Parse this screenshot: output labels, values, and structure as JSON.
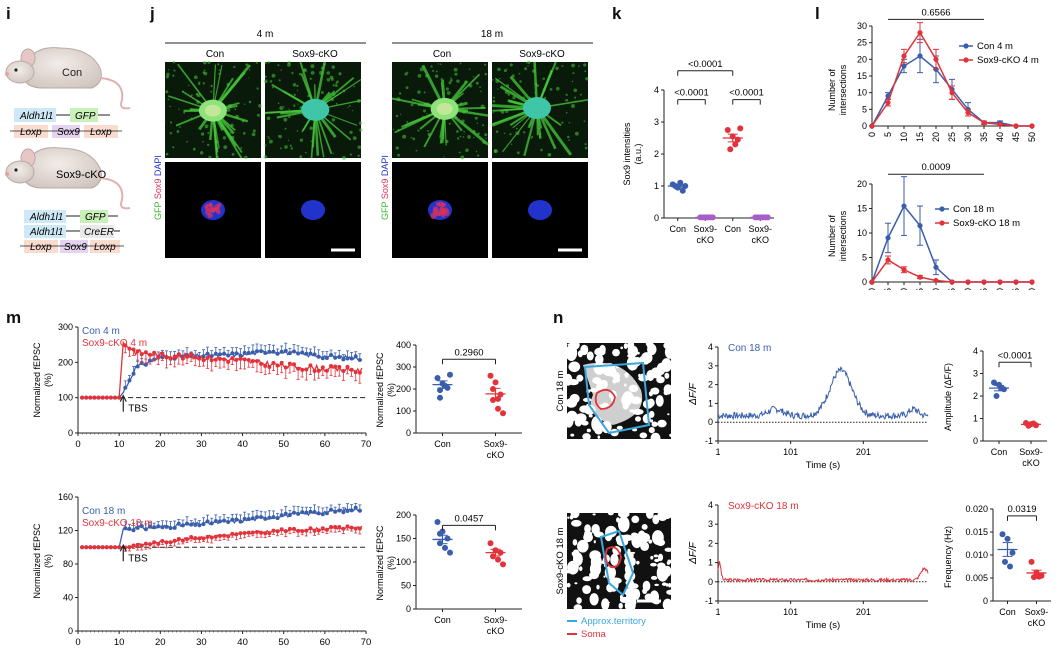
{
  "panels": {
    "i": {
      "label": "i",
      "con": {
        "title": "Con",
        "row1": [
          "Aldh1l1",
          "GFP"
        ],
        "row2": [
          "Loxp",
          "Sox9",
          "Loxp"
        ]
      },
      "cko": {
        "title": "Sox9-cKO",
        "row1": [
          "Aldh1l1",
          "GFP"
        ],
        "row2": [
          "Aldh1l1",
          "CreER"
        ],
        "row3": [
          "Loxp",
          "Sox9",
          "Loxp"
        ]
      }
    },
    "j": {
      "label": "j",
      "age1": "4 m",
      "age2": "18 m",
      "group1": "Con",
      "group2": "Sox9-cKO",
      "stain_gfp": "GFP",
      "stain_sox9": "Sox9",
      "stain_dapi": "DAPI"
    },
    "k": {
      "label": "k"
    },
    "l": {
      "label": "l"
    },
    "m": {
      "label": "m"
    },
    "n": {
      "label": "n",
      "img_label_top": "Con 18 m",
      "img_label_bottom": "Sox9-cKO 18 m",
      "legend_territory": "Approx.territory",
      "legend_soma": "Soma"
    }
  },
  "colors": {
    "con": "#3a5eab",
    "cko": "#e2323a",
    "gfp": "#46c93a",
    "dapi": "#2233cc",
    "sox9": "#e0305a",
    "territory": "#3aa7e0"
  },
  "chart_data": [
    {
      "id": "k",
      "type": "scatter",
      "ylabel": "Sox9 intensities (a.u.)",
      "ylim": [
        0,
        4
      ],
      "yticks": [
        0,
        1,
        2,
        3,
        4
      ],
      "categories": [
        "Con",
        "Sox9-cKO",
        "Con",
        "Sox9-cKO"
      ],
      "category_colors": [
        "#3a5eab",
        "#a85ec8",
        "#e2323a",
        "#a85ec8"
      ],
      "points": [
        [
          1.05,
          0.95,
          0.85,
          1.0,
          1.1,
          1.0
        ],
        [
          0.02,
          0.02,
          0.02,
          0.02,
          0.02,
          0.02
        ],
        [
          2.75,
          2.55,
          2.45,
          2.15,
          2.3,
          2.8
        ],
        [
          0.02,
          0.02,
          0.02,
          0.02,
          0.02,
          0.02
        ]
      ],
      "means": [
        1.0,
        0.02,
        2.5,
        0.02
      ],
      "sems": [
        0.04,
        0.0,
        0.12,
        0.0
      ],
      "comparisons": [
        {
          "a": 0,
          "b": 1,
          "label": "<0.0001",
          "y": 3.7
        },
        {
          "a": 2,
          "b": 3,
          "label": "<0.0001",
          "y": 3.7
        },
        {
          "a": 0,
          "b": 2,
          "label": "<0.0001",
          "y": 4.6
        }
      ]
    },
    {
      "id": "l1",
      "type": "line",
      "ylabel": "Number of intersections",
      "x": [
        0,
        5,
        10,
        15,
        20,
        25,
        30,
        35,
        40,
        45,
        50
      ],
      "xlim": [
        0,
        50
      ],
      "ylim": [
        0,
        30
      ],
      "yticks": [
        0,
        5,
        10,
        15,
        20,
        25,
        30
      ],
      "comparison": {
        "label": "0.6566",
        "x1": 5,
        "x2": 35,
        "y": 32
      },
      "series": [
        {
          "name": "Con 4 m",
          "color": "#3a5eab",
          "values": [
            0,
            9,
            18,
            21,
            17,
            11,
            5,
            1,
            1,
            0,
            0
          ],
          "err": [
            0,
            1,
            2,
            5,
            4,
            3,
            2,
            0.5,
            0.5,
            0,
            0
          ]
        },
        {
          "name": "Sox9-cKO 4 m",
          "color": "#e2323a",
          "values": [
            0,
            7,
            21,
            28,
            20,
            10,
            4,
            1,
            0.5,
            0,
            0
          ],
          "err": [
            0,
            1,
            2,
            3,
            3,
            2,
            1,
            0.5,
            0,
            0,
            0
          ]
        }
      ]
    },
    {
      "id": "l2",
      "type": "line",
      "ylabel": "Number of intersections",
      "x": [
        0,
        5,
        10,
        15,
        20,
        25,
        30,
        35,
        40,
        45,
        50
      ],
      "xlim": [
        0,
        50
      ],
      "ylim": [
        0,
        20
      ],
      "yticks": [
        0,
        5,
        10,
        15,
        20
      ],
      "comparison": {
        "label": "0.0009",
        "x1": 5,
        "x2": 35,
        "y": 22
      },
      "series": [
        {
          "name": "Con 18 m",
          "color": "#3a5eab",
          "values": [
            0,
            9,
            15.5,
            11.5,
            3,
            0,
            0,
            0,
            0,
            0,
            0
          ],
          "err": [
            0,
            3,
            6,
            4,
            1.5,
            0,
            0,
            0,
            0,
            0,
            0
          ]
        },
        {
          "name": "Sox9-cKO 18 m",
          "color": "#e2323a",
          "values": [
            0,
            4.5,
            2.5,
            1,
            0.3,
            0,
            0,
            0,
            0,
            0,
            0
          ],
          "err": [
            0,
            0.8,
            0.6,
            0.3,
            0,
            0,
            0,
            0,
            0,
            0,
            0
          ]
        }
      ]
    },
    {
      "id": "m1",
      "type": "line",
      "ylabel": "Normalized fEPSC (%)",
      "xlim": [
        0,
        70
      ],
      "xticks": [
        0,
        10,
        20,
        30,
        40,
        50,
        60,
        70
      ],
      "ylim": [
        0,
        300
      ],
      "yticks": [
        0,
        100,
        200,
        300
      ],
      "annotation": "TBS",
      "annotation_x": 11,
      "baseline": 100,
      "series": [
        {
          "name": "Con 4 m",
          "color": "#3a5eab",
          "start": 1,
          "end": 69,
          "baseline_end": 10,
          "post_start": 11,
          "profile": [
            [
              11,
              115
            ],
            [
              14,
              185
            ],
            [
              20,
              215
            ],
            [
              30,
              218
            ],
            [
              40,
              222
            ],
            [
              47,
              232
            ],
            [
              55,
              222
            ],
            [
              62,
              215
            ],
            [
              69,
              212
            ]
          ],
          "err": 20
        },
        {
          "name": "Sox9-cKO 4 m",
          "color": "#e2323a",
          "start": 1,
          "end": 69,
          "baseline_end": 10,
          "post_start": 11,
          "profile": [
            [
              11,
              255
            ],
            [
              14,
              230
            ],
            [
              20,
              220
            ],
            [
              30,
              215
            ],
            [
              40,
              205
            ],
            [
              50,
              190
            ],
            [
              60,
              182
            ],
            [
              69,
              178
            ]
          ],
          "err": 28
        }
      ]
    },
    {
      "id": "m1b",
      "type": "scatter",
      "ylabel": "Normalized fEPSC (%)",
      "ylim": [
        0,
        400
      ],
      "yticks": [
        0,
        100,
        200,
        300,
        400
      ],
      "categories": [
        "Con",
        "Sox9-cKO"
      ],
      "category_colors": [
        "#3a5eab",
        "#e2323a"
      ],
      "points": [
        [
          250,
          225,
          205,
          195,
          215,
          265,
          160
        ],
        [
          260,
          230,
          175,
          150,
          110,
          90,
          200,
          155
        ]
      ],
      "means": [
        220,
        178
      ],
      "sems": [
        17,
        25
      ],
      "comparisons": [
        {
          "a": 0,
          "b": 1,
          "label": "0.2960",
          "y": 335
        }
      ]
    },
    {
      "id": "m2",
      "type": "line",
      "ylabel": "Normalized fEPSC (%)",
      "xlim": [
        0,
        70
      ],
      "xticks": [
        0,
        10,
        20,
        30,
        40,
        50,
        60,
        70
      ],
      "ylim": [
        0,
        160
      ],
      "yticks": [
        0,
        40,
        80,
        120,
        160
      ],
      "annotation": "TBS",
      "annotation_x": 11,
      "baseline": 100,
      "series": [
        {
          "name": "Con 18 m",
          "color": "#3a5eab",
          "start": 1,
          "end": 69,
          "baseline_end": 10,
          "post_start": 11,
          "profile": [
            [
              11,
              122
            ],
            [
              20,
              124
            ],
            [
              30,
              128
            ],
            [
              40,
              132
            ],
            [
              50,
              138
            ],
            [
              60,
              142
            ],
            [
              69,
              146
            ]
          ],
          "err": 8
        },
        {
          "name": "Sox9-cKO 18 m",
          "color": "#e2323a",
          "start": 1,
          "end": 69,
          "baseline_end": 10,
          "post_start": 11,
          "profile": [
            [
              11,
              100
            ],
            [
              20,
              106
            ],
            [
              30,
              112
            ],
            [
              40,
              116
            ],
            [
              50,
              120
            ],
            [
              60,
              122
            ],
            [
              69,
              124
            ]
          ],
          "err": 6
        }
      ]
    },
    {
      "id": "m2b",
      "type": "scatter",
      "ylabel": "Normalized fEPSC (%)",
      "ylim": [
        0,
        200
      ],
      "yticks": [
        0,
        50,
        100,
        150,
        200
      ],
      "categories": [
        "Con",
        "Sox9-cKO"
      ],
      "category_colors": [
        "#3a5eab",
        "#e2323a"
      ],
      "points": [
        [
          185,
          165,
          150,
          140,
          130,
          120,
          160
        ],
        [
          140,
          125,
          120,
          112,
          105,
          95
        ]
      ],
      "means": [
        148,
        120
      ],
      "sems": [
        9,
        7
      ],
      "comparisons": [
        {
          "a": 0,
          "b": 1,
          "label": "0.0457",
          "y": 178
        }
      ]
    },
    {
      "id": "n1",
      "type": "line",
      "ylabel": "ΔF/F",
      "xlabel": "Time (s)",
      "title": "Con 18 m",
      "xlim": [
        1,
        290
      ],
      "xticks": [
        1,
        101,
        201
      ],
      "ylim": [
        -1,
        4
      ],
      "yticks": [
        -1,
        0,
        1,
        2,
        3,
        4
      ],
      "series": [
        {
          "name": "Con 18 m",
          "color": "#3a5eab",
          "seed": 7,
          "amp": 0.18,
          "base": 0.35,
          "bumps": [
            [
              80,
              0.35,
              10
            ],
            [
              170,
              2.4,
              15
            ],
            [
              270,
              0.35,
              6
            ]
          ]
        }
      ]
    },
    {
      "id": "n1b",
      "type": "scatter",
      "ylabel": "Amplitude (ΔF/F)",
      "ylim": [
        0,
        4
      ],
      "yticks": [
        0,
        1,
        2,
        3,
        4
      ],
      "categories": [
        "Con",
        "Sox9-cKO"
      ],
      "category_colors": [
        "#3a5eab",
        "#e2323a"
      ],
      "points": [
        [
          2.6,
          2.5,
          2.3,
          2.0,
          2.35
        ],
        [
          0.8,
          0.75,
          0.7,
          0.68,
          0.78
        ]
      ],
      "means": [
        2.35,
        0.74
      ],
      "sems": [
        0.12,
        0.03
      ],
      "comparisons": [
        {
          "a": 0,
          "b": 1,
          "label": "<0.0001",
          "y": 3.5
        }
      ]
    },
    {
      "id": "n2",
      "type": "line",
      "ylabel": "ΔF/F",
      "xlabel": "Time (s)",
      "title": "Sox9-cKO 18 m",
      "xlim": [
        1,
        290
      ],
      "xticks": [
        1,
        101,
        201
      ],
      "ylim": [
        -1,
        4
      ],
      "yticks": [
        -1,
        0,
        1,
        2,
        3,
        4
      ],
      "series": [
        {
          "name": "Sox9-cKO 18 m",
          "color": "#e2323a",
          "seed": 3,
          "amp": 0.08,
          "base": 0.1,
          "bumps": [
            [
              3,
              0.9,
              2
            ],
            [
              285,
              0.6,
              5
            ]
          ]
        }
      ]
    },
    {
      "id": "n2b",
      "type": "scatter",
      "ylabel": "Frequency (Hz)",
      "ylim": [
        0,
        0.02
      ],
      "yticks": [
        0,
        0.005,
        0.01,
        0.015,
        0.02
      ],
      "tick_labels": [
        "0",
        "0.005",
        "0.010",
        "0.015",
        "0.020"
      ],
      "categories": [
        "Con",
        "Sox9-cKO"
      ],
      "category_colors": [
        "#3a5eab",
        "#e2323a"
      ],
      "points": [
        [
          0.0145,
          0.0135,
          0.0105,
          0.0085,
          0.0075
        ],
        [
          0.0085,
          0.0062,
          0.0055,
          0.0052,
          0.0053
        ]
      ],
      "means": [
        0.0112,
        0.0061
      ],
      "sems": [
        0.0015,
        0.0006
      ],
      "comparisons": [
        {
          "a": 0,
          "b": 1,
          "label": "0.0319",
          "y": 0.0185
        }
      ]
    }
  ]
}
